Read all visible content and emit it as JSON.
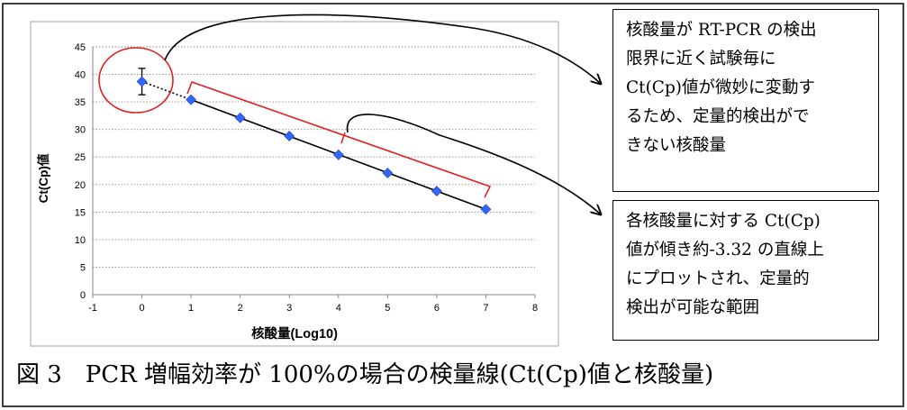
{
  "chart_data": {
    "type": "scatter",
    "xlabel": "核酸量(Log10)",
    "ylabel": "Ct(Cp)値",
    "xlim": [
      -1,
      8
    ],
    "ylim": [
      0,
      45
    ],
    "x_ticks": [
      "-1",
      "0",
      "1",
      "2",
      "3",
      "4",
      "5",
      "6",
      "7",
      "8"
    ],
    "y_ticks": [
      "0",
      "5",
      "10",
      "15",
      "20",
      "25",
      "30",
      "35",
      "40",
      "45"
    ],
    "grid": "horizontal dotted",
    "marker": "diamond",
    "marker_color": "#3366ff",
    "x": [
      0,
      1,
      2,
      3,
      4,
      5,
      6,
      7
    ],
    "y": [
      38.7,
      35.4,
      32.1,
      28.8,
      25.4,
      22.1,
      18.8,
      15.5
    ],
    "error_bar_low": [
      36.3,
      null,
      null,
      null,
      null,
      null,
      null,
      null
    ],
    "error_bar_high": [
      41.1,
      null,
      null,
      null,
      null,
      null,
      null,
      null
    ],
    "fit_line": {
      "x_from": 1,
      "x_to": 7,
      "slope": -3.32,
      "style": "solid"
    },
    "extension_line": {
      "x_from": 0,
      "x_to": 1,
      "style": "dotted"
    }
  },
  "annotation_colors": {
    "highlight": "#e02020",
    "arrow": "#000000"
  },
  "callouts": {
    "top": [
      "核酸量が RT-PCR の検出",
      "限界に近く試験毎に",
      "Ct(Cp)値が微妙に変動す",
      "るため、定量的検出がで",
      "きない核酸量"
    ],
    "bottom": [
      "各核酸量に対する Ct(Cp)",
      "値が傾き約-3.32 の直線上",
      "にプロットされ、定量的",
      "検出が可能な範囲"
    ]
  },
  "caption": "図 3　PCR 増幅効率が 100%の場合の検量線(Ct(Cp)値と核酸量)"
}
